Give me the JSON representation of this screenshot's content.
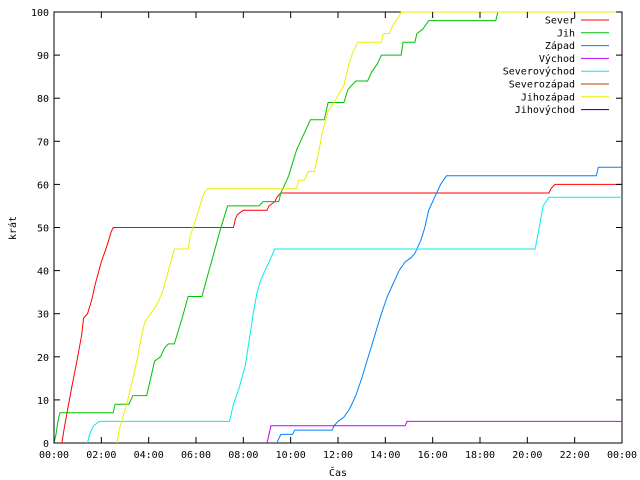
{
  "chart_data": {
    "type": "line",
    "title": "",
    "xlabel": "Čas",
    "ylabel": "krát",
    "xlim": [
      "00:00",
      "24:00"
    ],
    "ylim": [
      0,
      100
    ],
    "x_ticks": [
      "00:00",
      "02:00",
      "04:00",
      "06:00",
      "08:00",
      "10:00",
      "12:00",
      "14:00",
      "16:00",
      "18:00",
      "20:00",
      "22:00",
      "00:00"
    ],
    "y_ticks": [
      "0",
      "10",
      "20",
      "30",
      "40",
      "50",
      "60",
      "70",
      "80",
      "90",
      "100"
    ],
    "grid": false,
    "legend_position": "top-right",
    "series": [
      {
        "name": "Sever",
        "color": "#ff0000",
        "points": [
          [
            "00:20",
            0
          ],
          [
            "00:25",
            3
          ],
          [
            "00:35",
            8
          ],
          [
            "00:45",
            13
          ],
          [
            "01:00",
            20
          ],
          [
            "01:10",
            25
          ],
          [
            "01:15",
            29
          ],
          [
            "01:25",
            30
          ],
          [
            "01:35",
            33
          ],
          [
            "01:45",
            37
          ],
          [
            "02:00",
            42
          ],
          [
            "02:15",
            46
          ],
          [
            "02:25",
            49
          ],
          [
            "02:30",
            50
          ],
          [
            "07:35",
            50
          ],
          [
            "07:40",
            52
          ],
          [
            "07:45",
            53
          ],
          [
            "08:00",
            54
          ],
          [
            "09:00",
            54
          ],
          [
            "09:05",
            55
          ],
          [
            "09:20",
            56
          ],
          [
            "09:25",
            57
          ],
          [
            "09:35",
            58
          ],
          [
            "20:55",
            58
          ],
          [
            "21:00",
            59
          ],
          [
            "21:10",
            60
          ],
          [
            "24:00",
            60
          ]
        ]
      },
      {
        "name": "Jih",
        "color": "#00c000",
        "points": [
          [
            "00:00",
            0
          ],
          [
            "00:05",
            2
          ],
          [
            "00:10",
            5
          ],
          [
            "00:15",
            7
          ],
          [
            "02:30",
            7
          ],
          [
            "02:35",
            9
          ],
          [
            "03:10",
            9
          ],
          [
            "03:15",
            10
          ],
          [
            "03:20",
            11
          ],
          [
            "03:55",
            11
          ],
          [
            "04:05",
            15
          ],
          [
            "04:15",
            19
          ],
          [
            "04:30",
            20
          ],
          [
            "04:40",
            22
          ],
          [
            "04:50",
            23
          ],
          [
            "05:05",
            23
          ],
          [
            "05:15",
            26
          ],
          [
            "05:25",
            29
          ],
          [
            "05:40",
            34
          ],
          [
            "06:15",
            34
          ],
          [
            "06:30",
            39
          ],
          [
            "06:45",
            44
          ],
          [
            "07:00",
            49
          ],
          [
            "07:10",
            52
          ],
          [
            "07:20",
            55
          ],
          [
            "08:40",
            55
          ],
          [
            "08:50",
            56
          ],
          [
            "09:30",
            56
          ],
          [
            "09:35",
            58
          ],
          [
            "09:45",
            60
          ],
          [
            "09:55",
            62
          ],
          [
            "10:05",
            65
          ],
          [
            "10:15",
            68
          ],
          [
            "10:25",
            70
          ],
          [
            "10:35",
            72
          ],
          [
            "10:50",
            75
          ],
          [
            "11:25",
            75
          ],
          [
            "11:30",
            77
          ],
          [
            "11:35",
            79
          ],
          [
            "12:15",
            79
          ],
          [
            "12:25",
            82
          ],
          [
            "12:35",
            83
          ],
          [
            "12:45",
            84
          ],
          [
            "13:15",
            84
          ],
          [
            "13:25",
            86
          ],
          [
            "13:40",
            88
          ],
          [
            "13:50",
            90
          ],
          [
            "14:40",
            90
          ],
          [
            "14:45",
            93
          ],
          [
            "15:15",
            93
          ],
          [
            "15:20",
            95
          ],
          [
            "15:35",
            96
          ],
          [
            "15:50",
            98
          ],
          [
            "18:40",
            98
          ],
          [
            "18:45",
            100
          ],
          [
            "24:00",
            100
          ]
        ]
      },
      {
        "name": "Západ",
        "color": "#0080ff",
        "points": [
          [
            "09:25",
            0
          ],
          [
            "09:30",
            1
          ],
          [
            "09:35",
            2
          ],
          [
            "10:05",
            2
          ],
          [
            "10:10",
            3
          ],
          [
            "11:45",
            3
          ],
          [
            "11:50",
            4
          ],
          [
            "12:00",
            5
          ],
          [
            "12:15",
            6
          ],
          [
            "12:30",
            8
          ],
          [
            "12:45",
            11
          ],
          [
            "13:00",
            15
          ],
          [
            "13:10",
            18
          ],
          [
            "13:20",
            21
          ],
          [
            "13:30",
            24
          ],
          [
            "13:40",
            27
          ],
          [
            "13:50",
            30
          ],
          [
            "14:05",
            34
          ],
          [
            "14:20",
            37
          ],
          [
            "14:35",
            40
          ],
          [
            "14:50",
            42
          ],
          [
            "15:05",
            43
          ],
          [
            "15:15",
            44
          ],
          [
            "15:30",
            47
          ],
          [
            "15:40",
            50
          ],
          [
            "15:50",
            54
          ],
          [
            "16:05",
            57
          ],
          [
            "16:20",
            60
          ],
          [
            "16:35",
            62
          ],
          [
            "22:55",
            62
          ],
          [
            "23:00",
            64
          ],
          [
            "24:00",
            64
          ]
        ]
      },
      {
        "name": "Východ",
        "color": "#c000ff",
        "points": [
          [
            "09:00",
            0
          ],
          [
            "09:05",
            2
          ],
          [
            "09:10",
            4
          ],
          [
            "14:50",
            4
          ],
          [
            "14:55",
            5
          ],
          [
            "24:00",
            5
          ]
        ]
      },
      {
        "name": "Severovýchod",
        "color": "#00eeee",
        "points": [
          [
            "01:25",
            0
          ],
          [
            "01:30",
            2
          ],
          [
            "01:40",
            4
          ],
          [
            "01:55",
            5
          ],
          [
            "07:25",
            5
          ],
          [
            "07:35",
            9
          ],
          [
            "07:50",
            13
          ],
          [
            "08:05",
            18
          ],
          [
            "08:15",
            24
          ],
          [
            "08:25",
            30
          ],
          [
            "08:35",
            35
          ],
          [
            "08:45",
            38
          ],
          [
            "08:55",
            40
          ],
          [
            "09:05",
            42
          ],
          [
            "09:20",
            45
          ],
          [
            "20:20",
            45
          ],
          [
            "20:30",
            50
          ],
          [
            "20:40",
            55
          ],
          [
            "20:55",
            57
          ],
          [
            "24:00",
            57
          ]
        ]
      },
      {
        "name": "Severozápad",
        "color": "#c04000",
        "points": []
      },
      {
        "name": "Jihozápad",
        "color": "#eeee00",
        "points": [
          [
            "02:40",
            0
          ],
          [
            "02:45",
            3
          ],
          [
            "02:55",
            6
          ],
          [
            "03:10",
            11
          ],
          [
            "03:20",
            15
          ],
          [
            "03:30",
            19
          ],
          [
            "03:40",
            24
          ],
          [
            "03:50",
            28
          ],
          [
            "04:05",
            30
          ],
          [
            "04:20",
            32
          ],
          [
            "04:35",
            35
          ],
          [
            "04:50",
            40
          ],
          [
            "05:05",
            45
          ],
          [
            "05:40",
            45
          ],
          [
            "05:45",
            48
          ],
          [
            "06:00",
            52
          ],
          [
            "06:10",
            55
          ],
          [
            "06:20",
            58
          ],
          [
            "06:30",
            59
          ],
          [
            "10:15",
            59
          ],
          [
            "10:20",
            61
          ],
          [
            "10:35",
            61
          ],
          [
            "10:45",
            63
          ],
          [
            "11:00",
            63
          ],
          [
            "11:10",
            67
          ],
          [
            "11:20",
            72
          ],
          [
            "11:35",
            77
          ],
          [
            "11:50",
            79
          ],
          [
            "12:15",
            83
          ],
          [
            "12:25",
            87
          ],
          [
            "12:35",
            90
          ],
          [
            "12:50",
            93
          ],
          [
            "13:50",
            93
          ],
          [
            "13:55",
            95
          ],
          [
            "14:10",
            95
          ],
          [
            "14:20",
            97
          ],
          [
            "14:35",
            99
          ],
          [
            "14:40",
            100
          ],
          [
            "24:00",
            100
          ]
        ]
      },
      {
        "name": "Jihovýchod",
        "color": "#000080",
        "points": []
      }
    ]
  }
}
